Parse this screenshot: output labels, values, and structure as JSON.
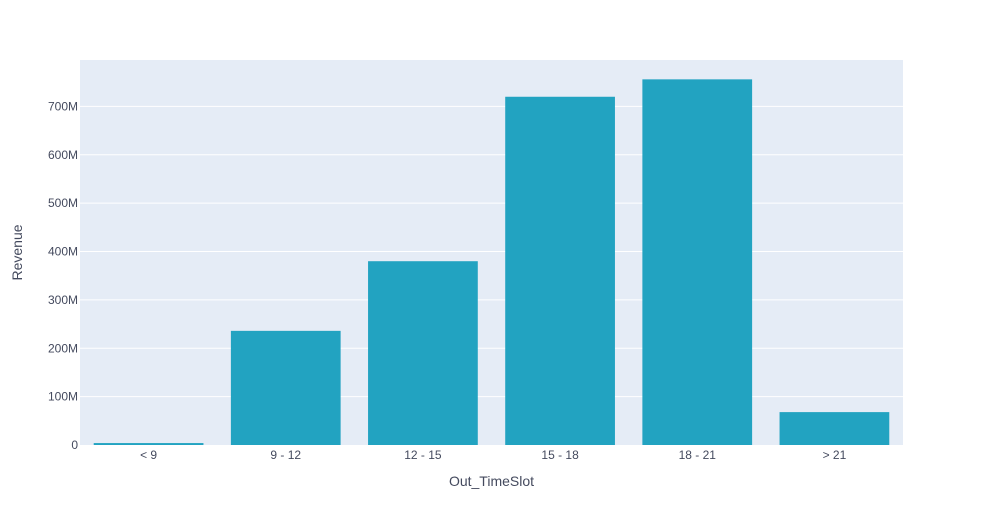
{
  "colors": {
    "plot_background": "#e5ecf6",
    "gridline": "#ffffff",
    "bar": "#22a3c1",
    "text": "#444a5e"
  },
  "chart_data": {
    "type": "bar",
    "title": "",
    "xlabel": "Out_TimeSlot",
    "ylabel": "Revenue",
    "categories": [
      "< 9",
      "9 - 12",
      "12 - 15",
      "15 - 18",
      "18 - 21",
      "> 21"
    ],
    "values": [
      4000000,
      236000000,
      380000000,
      720000000,
      756000000,
      68000000
    ],
    "ylim": [
      0,
      796000000
    ],
    "yticks": [
      0,
      100000000,
      200000000,
      300000000,
      400000000,
      500000000,
      600000000,
      700000000
    ],
    "ytick_labels": [
      "0",
      "100M",
      "200M",
      "300M",
      "400M",
      "500M",
      "600M",
      "700M"
    ],
    "grid": true,
    "legend": "none"
  }
}
